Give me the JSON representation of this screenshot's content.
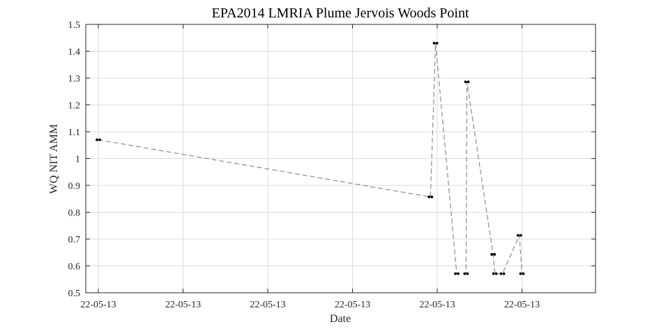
{
  "chart_data": {
    "type": "line",
    "title": "EPA2014 LMRIA Plume Jervois Woods Point",
    "xlabel": "Date",
    "ylabel": "WQ NIT AMM",
    "xlim": [
      0,
      6
    ],
    "ylim": [
      0.5,
      1.5
    ],
    "x_tick_values": [
      0,
      1,
      2,
      3,
      4,
      5
    ],
    "x_tick_labels": [
      "22-05-13",
      "22-05-13",
      "22-05-13",
      "22-05-13",
      "22-05-13",
      "22-05-13"
    ],
    "y_ticks": [
      0.5,
      0.6,
      0.7,
      0.8,
      0.9,
      1,
      1.1,
      1.2,
      1.3,
      1.4,
      1.5
    ],
    "y_tick_labels": [
      "0.5",
      "0.6",
      "0.7",
      "0.8",
      "0.9",
      "1",
      "1.1",
      "1.2",
      "1.3",
      "1.4",
      "1.5"
    ],
    "grid": true,
    "series": [
      {
        "line_color": "#8c8c8c",
        "marker_color": "#000000",
        "points": [
          {
            "x": 0.0,
            "y": 1.07
          },
          {
            "x": 3.92,
            "y": 0.857
          },
          {
            "x": 3.98,
            "y": 1.43
          },
          {
            "x": 4.23,
            "y": 0.571
          },
          {
            "x": 4.34,
            "y": 0.571
          },
          {
            "x": 4.35,
            "y": 1.286
          },
          {
            "x": 4.66,
            "y": 0.643
          },
          {
            "x": 4.68,
            "y": 0.571
          },
          {
            "x": 4.77,
            "y": 0.571
          },
          {
            "x": 4.97,
            "y": 0.714
          },
          {
            "x": 5.0,
            "y": 0.571
          }
        ]
      }
    ]
  }
}
